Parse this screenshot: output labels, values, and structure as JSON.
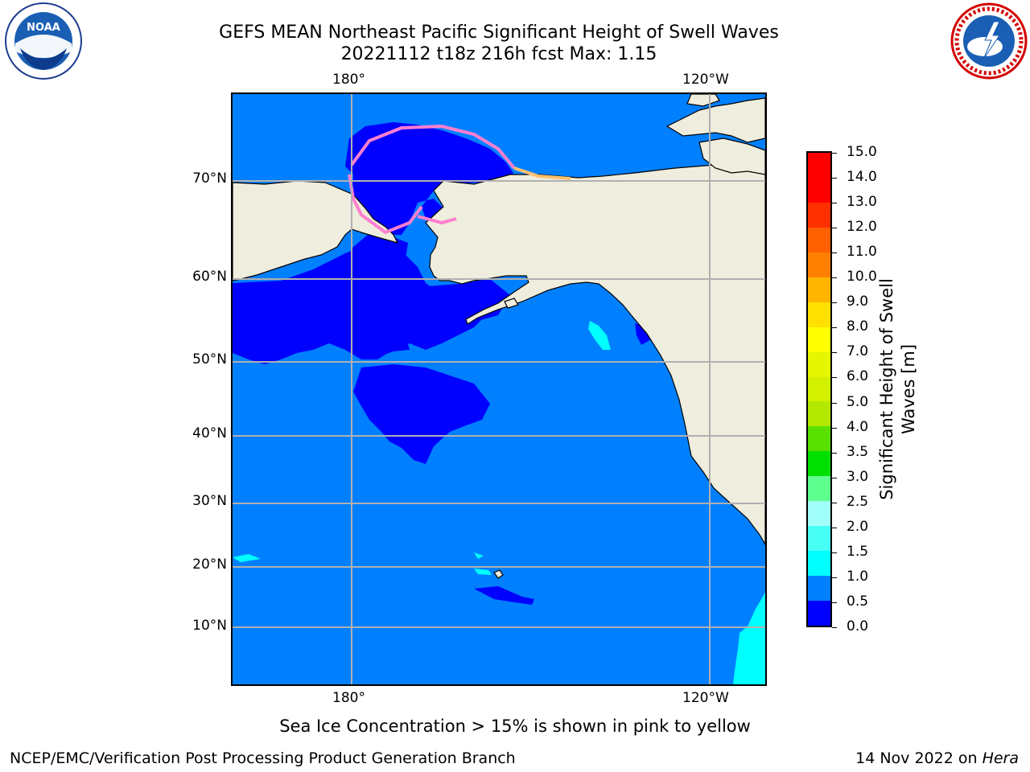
{
  "header": {
    "title_line1": "GEFS MEAN Northeast Pacific Significant Height of Swell Waves",
    "title_line2": "20221112 t18z 216h fcst   Max: 1.15"
  },
  "logos": {
    "noaa": {
      "text": "NOAA",
      "ring_text": "NATIONAL OCEANIC AND ATMOSPHERIC ADMINISTRATION · U.S. DEPARTMENT OF COMMERCE"
    },
    "nws": {
      "ring_text": "NATIONAL WEATHER SERVICE"
    }
  },
  "map": {
    "lon_labels_top": [
      "180°",
      "120°W"
    ],
    "lon_labels_bottom": [
      "180°",
      "120°W"
    ],
    "lat_labels": [
      "70°N",
      "60°N",
      "50°N",
      "40°N",
      "30°N",
      "20°N",
      "10°N"
    ],
    "colors": {
      "ocean_low": "#0000ff",
      "ocean_mid": "#0080ff",
      "ocean_high": "#00ffff",
      "land": "#efeddd",
      "grid": "#b0b0b0",
      "ice": "#ff7fd0"
    }
  },
  "colorbar": {
    "label_line1": "Significant Height of Swell",
    "label_line2": "Waves [m]",
    "ticks": [
      "0.0",
      "0.5",
      "1.0",
      "1.5",
      "2.0",
      "2.5",
      "3.0",
      "3.5",
      "4.0",
      "5.0",
      "6.0",
      "7.0",
      "8.0",
      "9.0",
      "10.0",
      "11.0",
      "12.0",
      "13.0",
      "14.0",
      "15.0"
    ],
    "colors": [
      "#0000ff",
      "#0080ff",
      "#00ffff",
      "#48fff5",
      "#a0fff8",
      "#5fff8f",
      "#00e000",
      "#5ae000",
      "#b4e800",
      "#d2f000",
      "#e6f500",
      "#ffff00",
      "#ffe000",
      "#ffb400",
      "#ff8000",
      "#ff6000",
      "#ff3000",
      "#ff0000",
      "#ff0000"
    ]
  },
  "note": "Sea Ice Concentration > 15% is shown in pink to yellow",
  "footer": {
    "left": "NCEP/EMC/Verification Post Processing Product Generation Branch",
    "right_prefix": "14 Nov 2022 on ",
    "right_machine": "Hera"
  }
}
